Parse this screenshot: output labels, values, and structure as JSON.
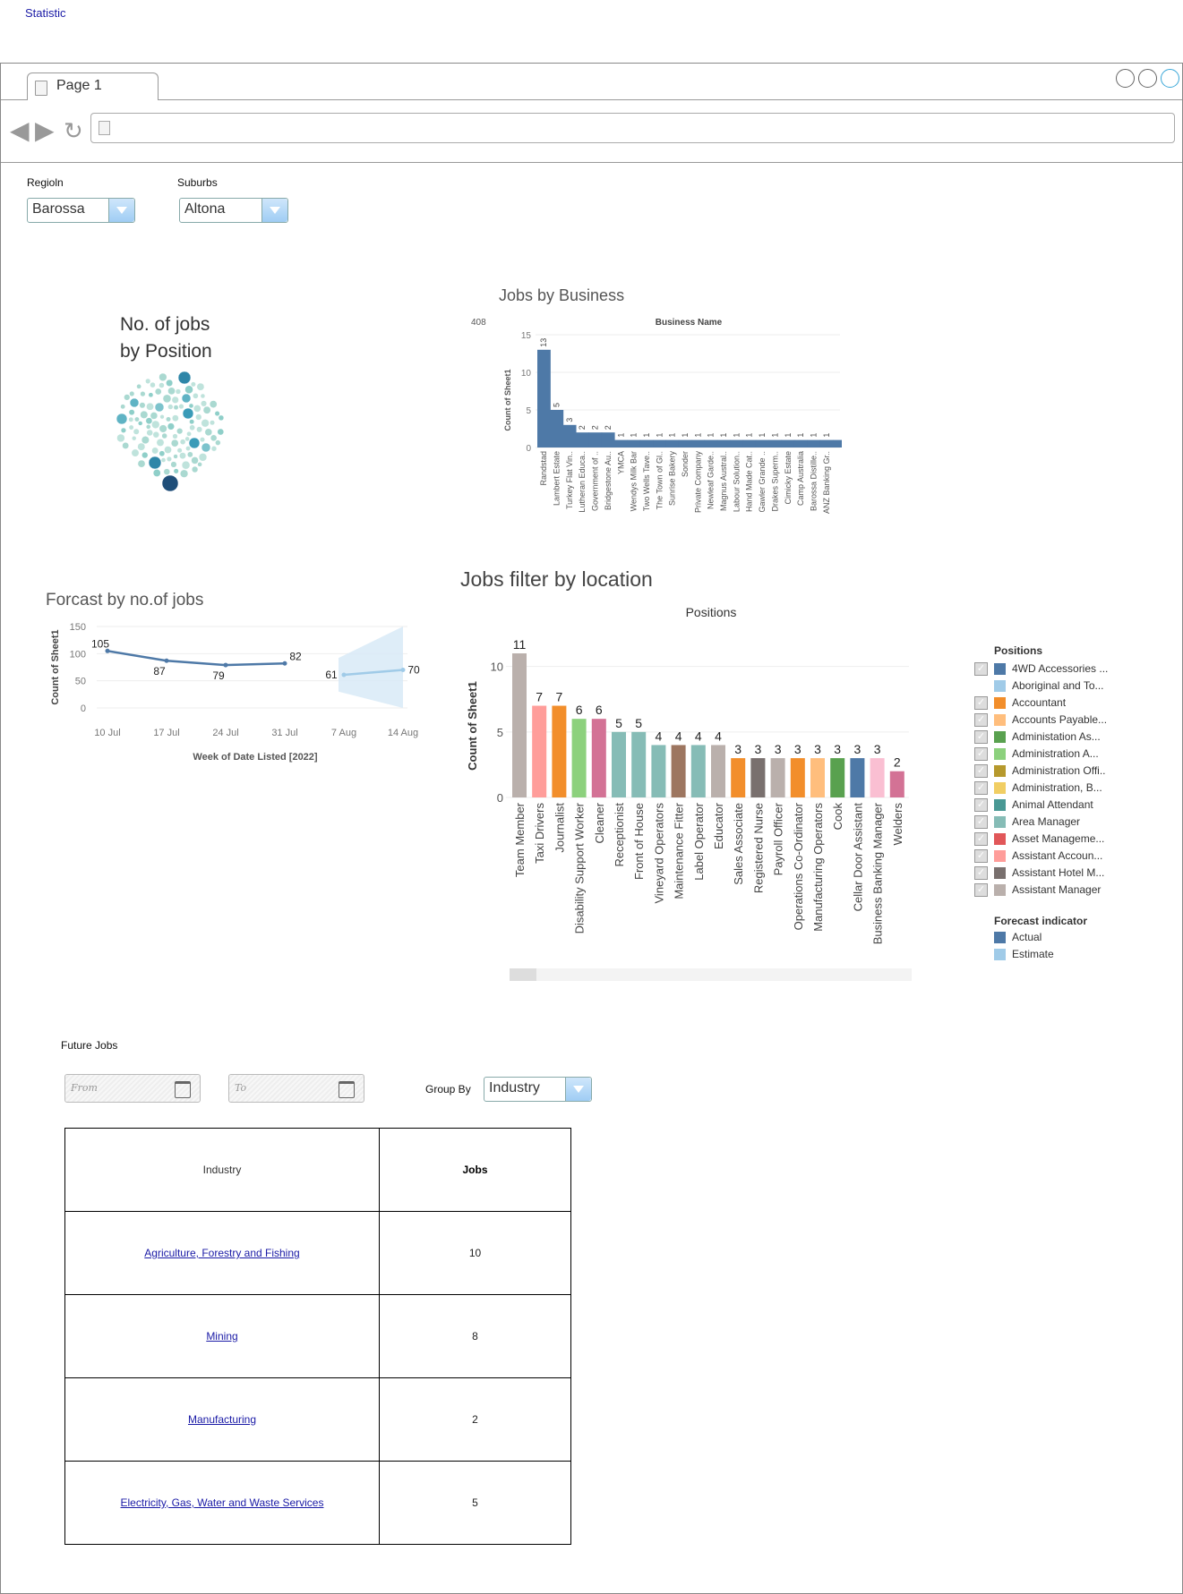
{
  "page_title": "Statistic",
  "browser": {
    "tab_label": "Page 1"
  },
  "filters": {
    "region_label": "Regioln",
    "region_value": "Barossa",
    "suburbs_label": "Suburbs",
    "suburbs_value": "Altona"
  },
  "bubble_title_line1": "No. of jobs",
  "bubble_title_line2": "by Position",
  "jobs_by_business_title": "Jobs by Business",
  "jobs_filter_title": "Jobs filter by location",
  "forecast_title": "Forcast by no.of jobs",
  "colors": {
    "bar_blue": "#4e79a7",
    "forecast_light": "#a0cbe8",
    "link": "#1a1aa6"
  },
  "chart_data": [
    {
      "type": "scatter",
      "title": "No. of jobs by Position",
      "subtype": "packed-bubble"
    },
    {
      "type": "bar",
      "title": "Business Name",
      "ylabel": "Count of Sheet1",
      "total_label": "408",
      "ylim": [
        0,
        15
      ],
      "yticks": [
        0,
        5,
        10,
        15
      ],
      "categories": [
        "Randstad",
        "Lambert Estate",
        "Turkey Flat Vin..",
        "Lutheran Educa..",
        "Government of ..",
        "Bridgestone Au..",
        "YMCA",
        "Wendys Milk Bar",
        "Two Wells Tave..",
        "The Town of Gl..",
        "Sunrise Bakery",
        "Sonder",
        "Private Company",
        "Newleaf Garde..",
        "Magnus Austral..",
        "Labour Solution..",
        "Hand Made Cat..",
        "Gawler Grande ..",
        "Drakes Superm..",
        "Cimicky Estate",
        "Camp Australia",
        "Barossa Distille..",
        "ANZ Banking Gr.."
      ],
      "values": [
        13,
        5,
        3,
        2,
        2,
        2,
        1,
        1,
        1,
        1,
        1,
        1,
        1,
        1,
        1,
        1,
        1,
        1,
        1,
        1,
        1,
        1,
        1
      ],
      "data_labels": [
        "13",
        "5",
        "3",
        "2",
        "2",
        "2",
        "1",
        "1",
        "1",
        "1",
        "1",
        "1",
        "1",
        "1",
        "1",
        "1",
        "1",
        "1",
        "1",
        "1",
        "1",
        "1",
        "1"
      ]
    },
    {
      "type": "line",
      "xlabel": "Week of Date Listed [2022]",
      "ylabel": "Count of Sheet1",
      "ylim": [
        0,
        150
      ],
      "yticks": [
        0,
        50,
        100,
        150
      ],
      "x": [
        "10 Jul",
        "17 Jul",
        "24 Jul",
        "31 Jul",
        "7 Aug",
        "14 Aug"
      ],
      "series": [
        {
          "name": "Actual",
          "values": [
            105,
            87,
            79,
            82,
            null,
            null
          ]
        },
        {
          "name": "Estimate",
          "values": [
            null,
            null,
            null,
            null,
            61,
            70
          ]
        }
      ]
    },
    {
      "type": "bar",
      "title": "Positions",
      "ylabel": "Count of Sheet1",
      "ylim": [
        0,
        11
      ],
      "yticks": [
        0,
        5,
        10
      ],
      "categories": [
        "Team Member",
        "Taxi Drivers",
        "Journalist",
        "Disability Support Worker",
        "Cleaner",
        "Receptionist",
        "Front of House",
        "Vineyard Operators",
        "Maintenance Fitter",
        "Label Operator",
        "Educator",
        "Sales Associate",
        "Registered Nurse",
        "Payroll Officer",
        "Operations Co-Ordinator",
        "Manufacturing Operators",
        "Cook",
        "Cellar Door Assistant",
        "Business Banking Manager",
        "Welders"
      ],
      "values": [
        11,
        7,
        7,
        6,
        6,
        5,
        5,
        4,
        4,
        4,
        4,
        3,
        3,
        3,
        3,
        3,
        3,
        3,
        3,
        2
      ],
      "colors": [
        "#bab0ac",
        "#ff9d9a",
        "#f28e2b",
        "#8cd17d",
        "#d37295",
        "#86bcb6",
        "#86bcb6",
        "#86bcb6",
        "#9d7660",
        "#86bcb6",
        "#bab0ac",
        "#f28e2b",
        "#79706e",
        "#bab0ac",
        "#f28e2b",
        "#ffbe7d",
        "#59a14f",
        "#4e79a7",
        "#fabfd2",
        "#d37295"
      ]
    }
  ],
  "legend": {
    "title": "Positions",
    "items": [
      {
        "label": "4WD Accessories ...",
        "color": "#4e79a7",
        "checked": true
      },
      {
        "label": "Aboriginal and To...",
        "color": "#a0cbe8",
        "checked": false
      },
      {
        "label": "Accountant",
        "color": "#f28e2b",
        "checked": true
      },
      {
        "label": "Accounts Payable...",
        "color": "#ffbe7d",
        "checked": true
      },
      {
        "label": "Administation As...",
        "color": "#59a14f",
        "checked": true
      },
      {
        "label": "Administration A...",
        "color": "#8cd17d",
        "checked": true
      },
      {
        "label": "Administration Offi..",
        "color": "#b6992d",
        "checked": true
      },
      {
        "label": "Administration, B...",
        "color": "#f1ce63",
        "checked": true
      },
      {
        "label": "Animal Attendant",
        "color": "#499894",
        "checked": true
      },
      {
        "label": "Area Manager",
        "color": "#86bcb6",
        "checked": true
      },
      {
        "label": "Asset Manageme...",
        "color": "#e15759",
        "checked": true
      },
      {
        "label": "Assistant Accoun...",
        "color": "#ff9d9a",
        "checked": true
      },
      {
        "label": "Assistant Hotel M...",
        "color": "#79706e",
        "checked": true
      },
      {
        "label": "Assistant Manager",
        "color": "#bab0ac",
        "checked": true
      }
    ],
    "forecast_title": "Forecast indicator",
    "forecast_items": [
      {
        "label": "Actual",
        "color": "#4e79a7"
      },
      {
        "label": "Estimate",
        "color": "#a0cbe8"
      }
    ]
  },
  "future_jobs": {
    "label": "Future Jobs",
    "from_placeholder": "From",
    "to_placeholder": "To",
    "group_by_label": "Group By",
    "group_by_value": "Industry",
    "table": {
      "headers": [
        "Industry",
        "Jobs"
      ],
      "rows": [
        {
          "industry": "Agriculture, Forestry and Fishing ",
          "jobs": "10"
        },
        {
          "industry": "Mining",
          "jobs": "8"
        },
        {
          "industry": "Manufacturing",
          "jobs": "2"
        },
        {
          "industry": "Electricity, Gas, Water and Waste Services",
          "jobs": "5"
        }
      ]
    }
  }
}
